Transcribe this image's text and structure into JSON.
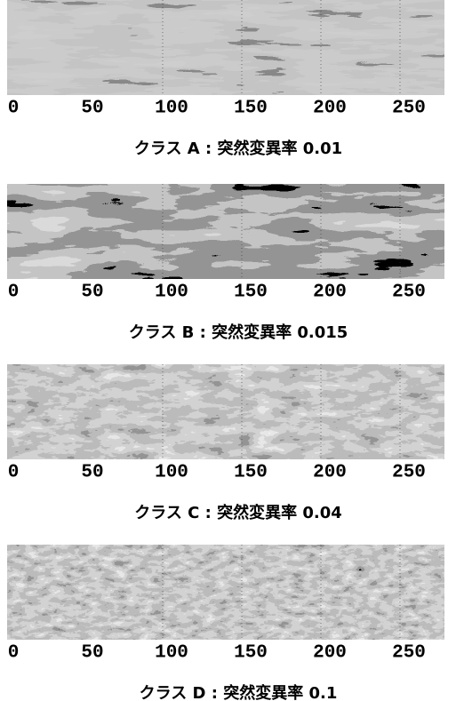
{
  "panels": [
    {
      "ticks": [
        0,
        50,
        100,
        150,
        200,
        250
      ],
      "caption": "クラス A : 突然変異率 0.01"
    },
    {
      "ticks": [
        0,
        50,
        100,
        150,
        200,
        250
      ],
      "caption": "クラス B : 突然変異率 0.015"
    },
    {
      "ticks": [
        0,
        50,
        100,
        150,
        200,
        250
      ],
      "caption": "クラス C : 突然変異率 0.04"
    },
    {
      "ticks": [
        0,
        50,
        100,
        150,
        200,
        250
      ],
      "caption": "クラス D : 突然変異率 0.1"
    }
  ]
}
